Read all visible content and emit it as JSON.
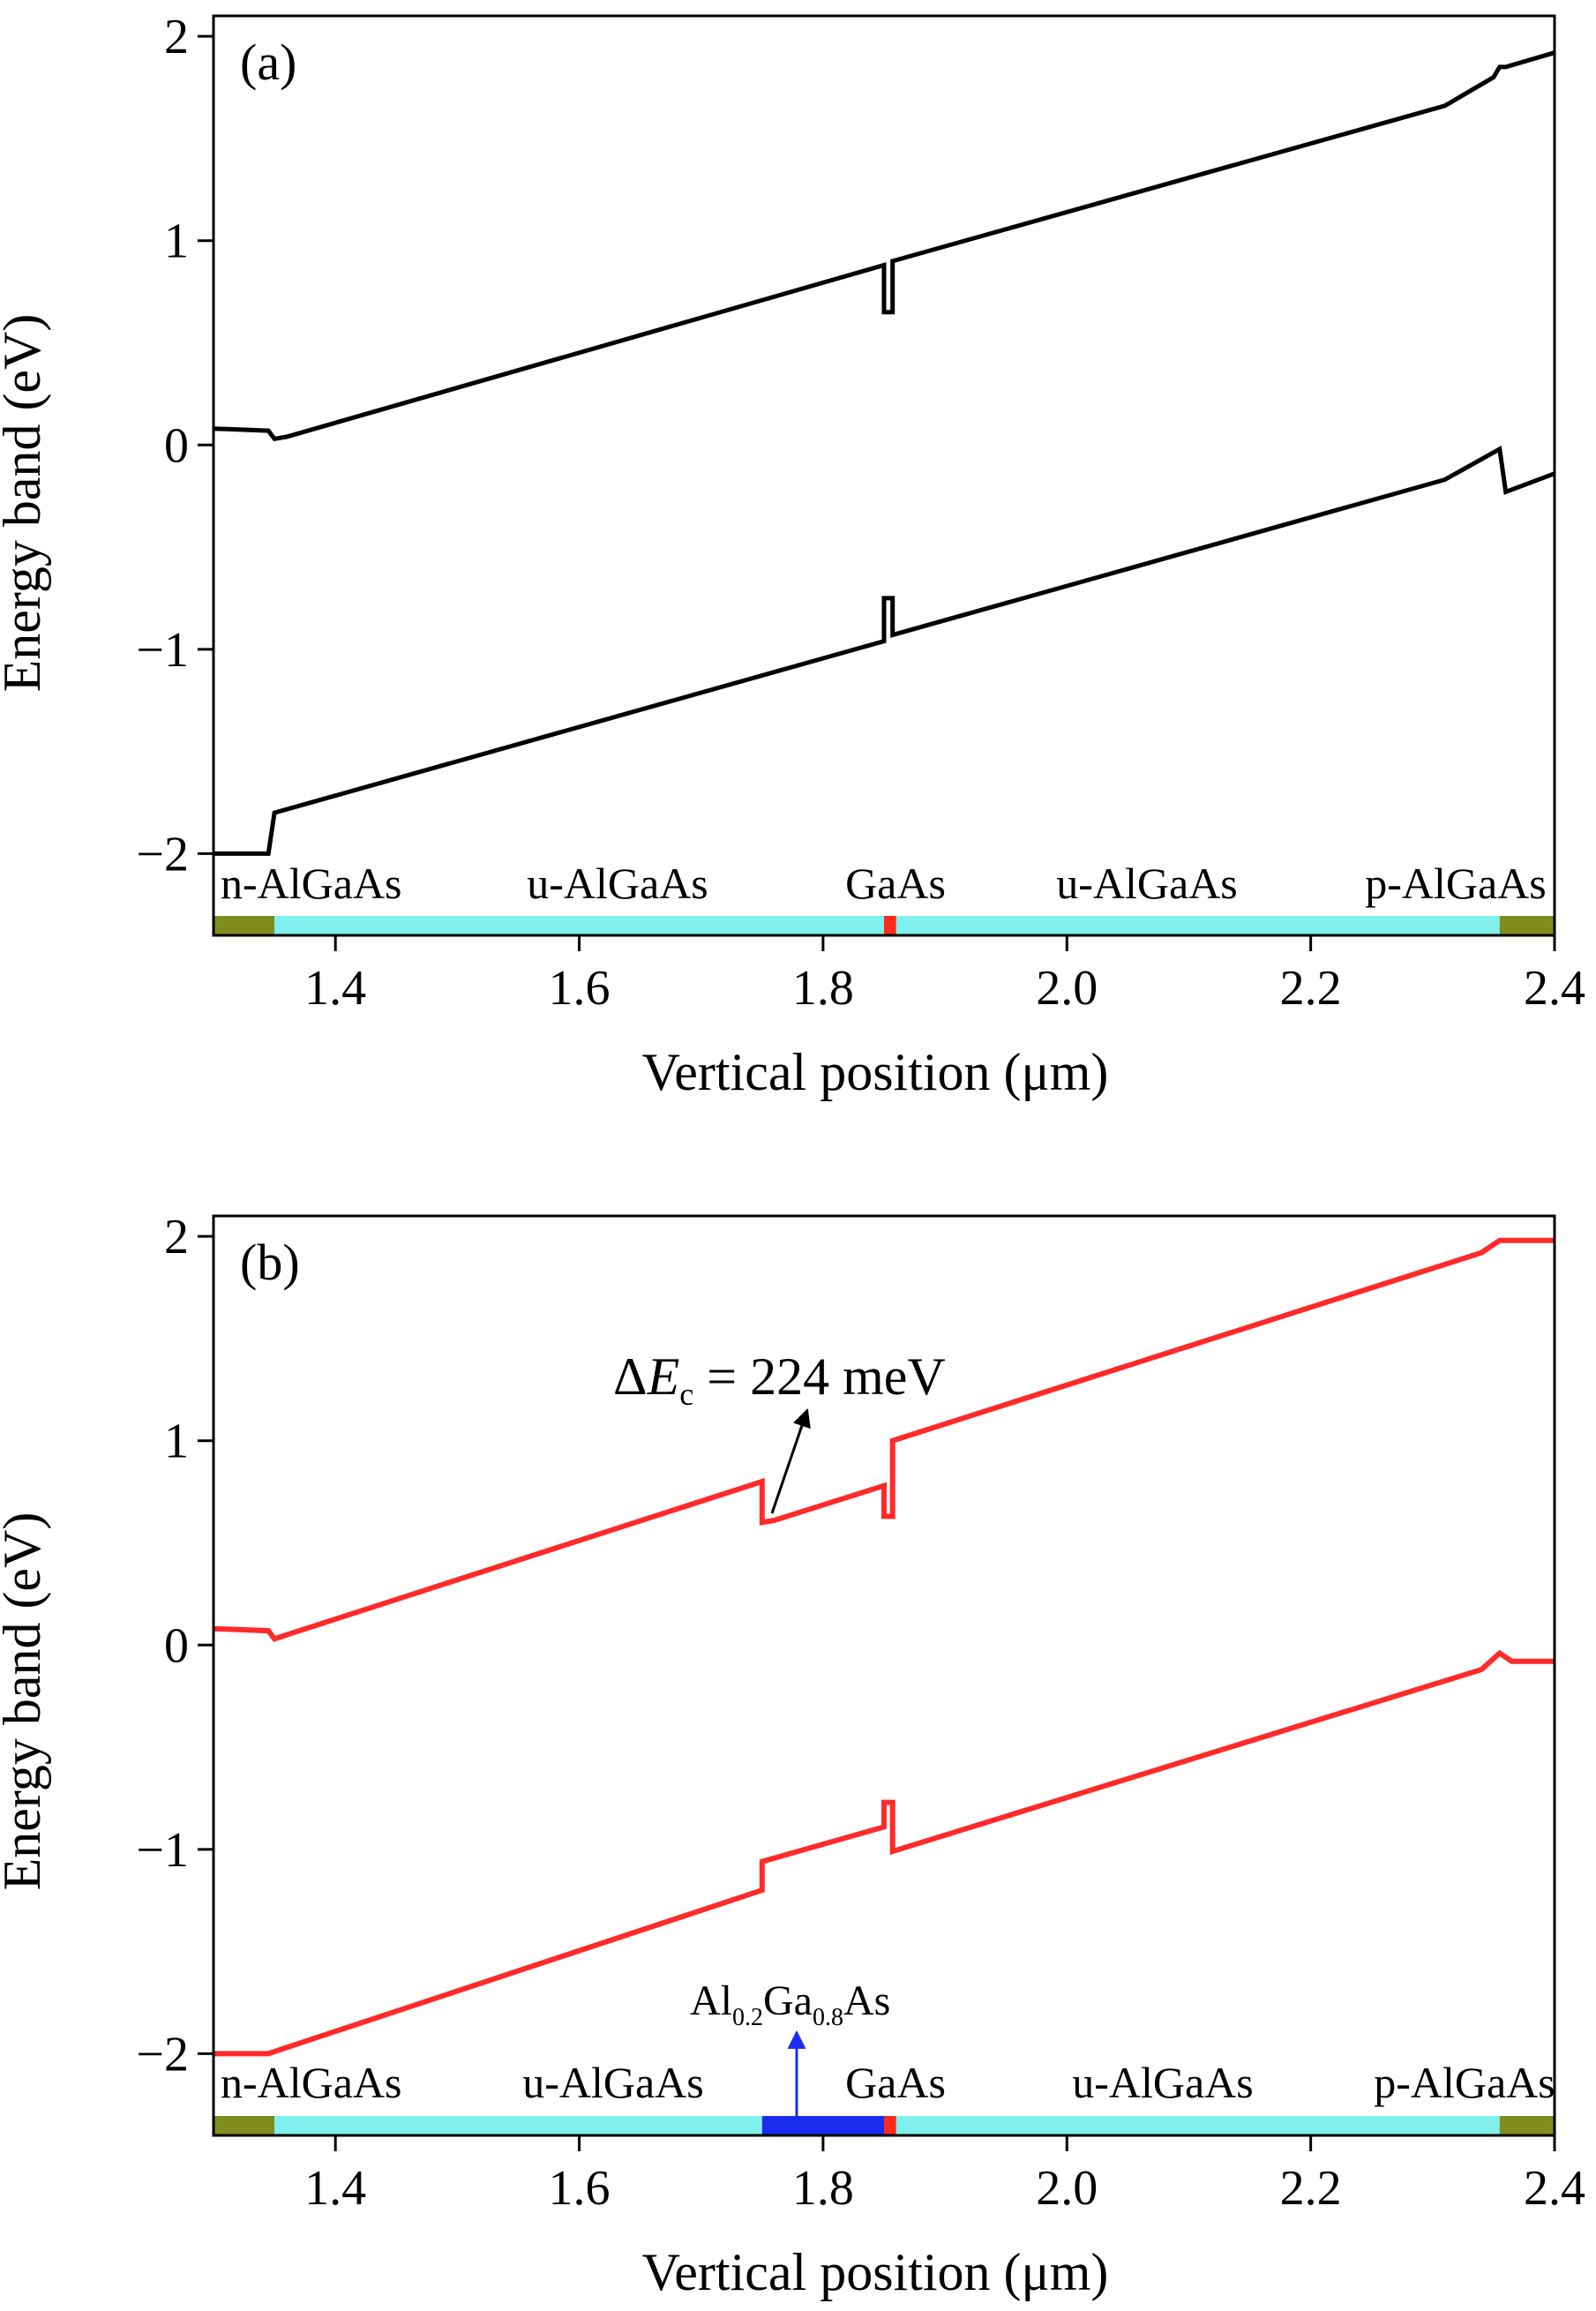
{
  "chart_data": [
    {
      "type": "line",
      "panel_label": "(a)",
      "xlabel": "Vertical position (μm)",
      "ylabel": "Energy band (eV)",
      "xlim": [
        1.3,
        2.4
      ],
      "ylim": [
        -2.4,
        2.1
      ],
      "xticks": [
        {
          "value": 1.4,
          "label": "1.4"
        },
        {
          "value": 1.6,
          "label": "1.6"
        },
        {
          "value": 1.8,
          "label": "1.8"
        },
        {
          "value": 2.0,
          "label": "2.0"
        },
        {
          "value": 2.2,
          "label": "2.2"
        },
        {
          "value": 2.4,
          "label": "2.4"
        }
      ],
      "yticks": [
        {
          "value": 2,
          "label": "2"
        },
        {
          "value": 1,
          "label": "1"
        },
        {
          "value": 0,
          "label": "0"
        },
        {
          "value": -1,
          "label": "−1"
        },
        {
          "value": -2,
          "label": "−2"
        }
      ],
      "line_color": "#000000",
      "series": [
        {
          "band": "conduction",
          "points": [
            [
              1.3,
              0.08
            ],
            [
              1.345,
              0.07
            ],
            [
              1.35,
              0.03
            ],
            [
              1.36,
              0.04
            ],
            [
              1.85,
              0.88
            ],
            [
              1.85,
              0.65
            ],
            [
              1.857,
              0.65
            ],
            [
              1.857,
              0.9
            ],
            [
              2.31,
              1.66
            ],
            [
              2.35,
              1.8
            ],
            [
              2.355,
              1.85
            ],
            [
              2.36,
              1.85
            ],
            [
              2.4,
              1.92
            ]
          ]
        },
        {
          "band": "valence",
          "points": [
            [
              1.3,
              -2.0
            ],
            [
              1.345,
              -2.0
            ],
            [
              1.35,
              -1.8
            ],
            [
              1.85,
              -0.96
            ],
            [
              1.85,
              -0.75
            ],
            [
              1.857,
              -0.75
            ],
            [
              1.857,
              -0.93
            ],
            [
              2.31,
              -0.17
            ],
            [
              2.355,
              -0.02
            ],
            [
              2.36,
              -0.23
            ],
            [
              2.4,
              -0.14
            ]
          ]
        }
      ],
      "layers": [
        {
          "name": "n-AlGaAs",
          "from": 1.3,
          "to": 1.35,
          "color": "#7f8c1e"
        },
        {
          "name": "u-AlGaAs",
          "from": 1.35,
          "to": 1.85,
          "color": "#7ff0ec"
        },
        {
          "name": "GaAs",
          "from": 1.85,
          "to": 1.86,
          "color": "#ff2a1a"
        },
        {
          "name": "u-AlGaAs",
          "from": 1.86,
          "to": 2.355,
          "color": "#7ff0ec"
        },
        {
          "name": "p-AlGaAs",
          "from": 2.355,
          "to": 2.4,
          "color": "#7f8c1e"
        }
      ]
    },
    {
      "type": "line",
      "panel_label": "(b)",
      "xlabel": "Vertical position (μm)",
      "ylabel": "Energy band (eV)",
      "xlim": [
        1.3,
        2.4
      ],
      "ylim": [
        -2.4,
        2.1
      ],
      "xticks": [
        {
          "value": 1.4,
          "label": "1.4"
        },
        {
          "value": 1.6,
          "label": "1.6"
        },
        {
          "value": 1.8,
          "label": "1.8"
        },
        {
          "value": 2.0,
          "label": "2.0"
        },
        {
          "value": 2.2,
          "label": "2.2"
        },
        {
          "value": 2.4,
          "label": "2.4"
        }
      ],
      "yticks": [
        {
          "value": 2,
          "label": "2"
        },
        {
          "value": 1,
          "label": "1"
        },
        {
          "value": 0,
          "label": "0"
        },
        {
          "value": -1,
          "label": "−1"
        },
        {
          "value": -2,
          "label": "−2"
        }
      ],
      "line_color": "#ff2a2a",
      "series": [
        {
          "band": "conduction",
          "points": [
            [
              1.3,
              0.08
            ],
            [
              1.345,
              0.07
            ],
            [
              1.35,
              0.03
            ],
            [
              1.36,
              0.05
            ],
            [
              1.75,
              0.8
            ],
            [
              1.75,
              0.6
            ],
            [
              1.76,
              0.61
            ],
            [
              1.85,
              0.78
            ],
            [
              1.85,
              0.63
            ],
            [
              1.857,
              0.63
            ],
            [
              1.857,
              1.0
            ],
            [
              2.34,
              1.92
            ],
            [
              2.355,
              1.98
            ],
            [
              2.4,
              1.98
            ]
          ]
        },
        {
          "band": "valence",
          "points": [
            [
              1.3,
              -2.0
            ],
            [
              1.345,
              -2.0
            ],
            [
              1.36,
              -1.97
            ],
            [
              1.75,
              -1.2
            ],
            [
              1.75,
              -1.06
            ],
            [
              1.85,
              -0.89
            ],
            [
              1.85,
              -0.77
            ],
            [
              1.857,
              -0.77
            ],
            [
              1.857,
              -1.01
            ],
            [
              2.34,
              -0.12
            ],
            [
              2.355,
              -0.04
            ],
            [
              2.365,
              -0.08
            ],
            [
              2.4,
              -0.08
            ]
          ]
        }
      ],
      "layers": [
        {
          "name": "n-AlGaAs",
          "from": 1.3,
          "to": 1.35,
          "color": "#7f8c1e"
        },
        {
          "name": "u-AlGaAs",
          "from": 1.35,
          "to": 1.75,
          "color": "#7ff0ec"
        },
        {
          "name": "Al0.2Ga0.8As",
          "from": 1.75,
          "to": 1.85,
          "color": "#1a2cf0"
        },
        {
          "name": "GaAs",
          "from": 1.85,
          "to": 1.86,
          "color": "#ff2a1a"
        },
        {
          "name": "u-AlGaAs",
          "from": 1.86,
          "to": 2.355,
          "color": "#7ff0ec"
        },
        {
          "name": "p-AlGaAs",
          "from": 2.355,
          "to": 2.4,
          "color": "#7f8c1e"
        }
      ],
      "annotations": {
        "delta_ec": {
          "prefix": "Δ",
          "var": "E",
          "sub": "c",
          "value": "= 224 meV",
          "arrow_to": [
            1.748,
            0.79
          ]
        },
        "algaas": {
          "al": "Al",
          "al_sub": "0.2",
          "ga": "Ga",
          "ga_sub": "0.8",
          "as": "As",
          "arrow_to": [
            1.79,
            -2.4
          ]
        }
      }
    }
  ]
}
